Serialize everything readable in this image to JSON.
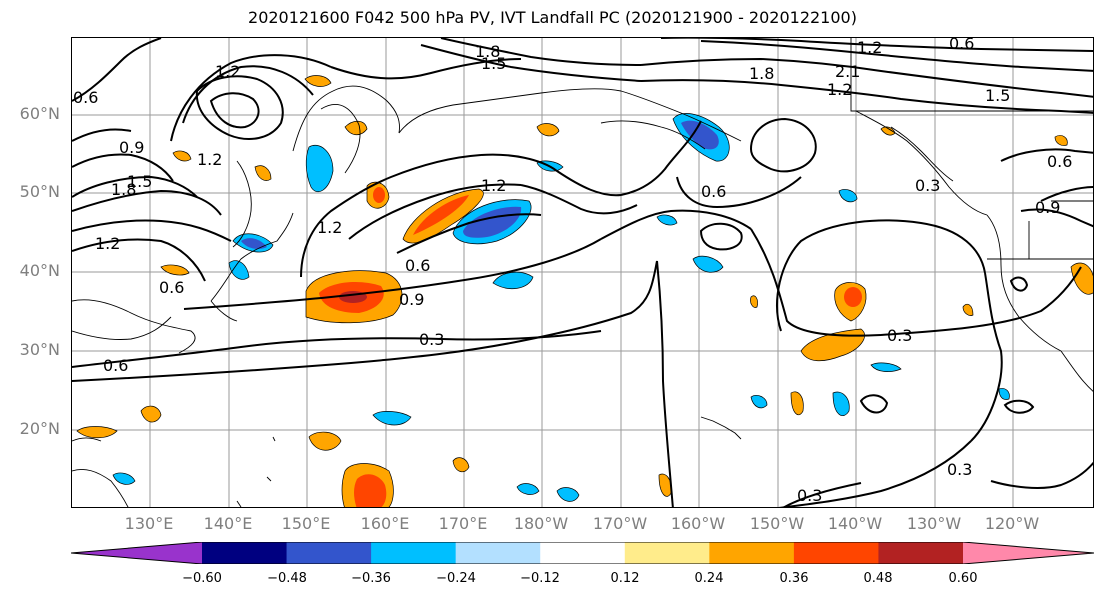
{
  "title": "2020121600 F042 500 hPa PV, IVT Landfall PC (2020121900 - 2020122100)",
  "lat_labels": [
    "60°N",
    "50°N",
    "40°N",
    "30°N",
    "20°N"
  ],
  "lon_labels": [
    "130°E",
    "140°E",
    "150°E",
    "160°E",
    "170°E",
    "180°W",
    "170°W",
    "160°W",
    "150°W",
    "140°W",
    "130°W",
    "120°W"
  ],
  "colorbar": {
    "tick_labels": [
      "−0.60",
      "−0.48",
      "−0.36",
      "−0.24",
      "−0.12",
      "0.12",
      "0.24",
      "0.36",
      "0.48",
      "0.60"
    ],
    "colors": [
      "#9933cc",
      "#000080",
      "#3355cc",
      "#00bfff",
      "#b3e0ff",
      "#ffffff",
      "#ffec8b",
      "#ffa500",
      "#ff4500",
      "#b22222",
      "#ff88aa"
    ]
  },
  "contour_labels": [
    "1.8",
    "1.5",
    "1.2",
    "0.9",
    "0.6",
    "0.3",
    "2.1"
  ],
  "contour_label_items": [
    {
      "text": "1.8"
    },
    {
      "text": "1.5"
    },
    {
      "text": "1.2"
    },
    {
      "text": "1.2"
    },
    {
      "text": "0.9"
    },
    {
      "text": "0.6"
    },
    {
      "text": "1.8"
    },
    {
      "text": "1.5"
    },
    {
      "text": "1.2"
    },
    {
      "text": "1.2"
    },
    {
      "text": "0.9"
    },
    {
      "text": "0.3"
    },
    {
      "text": "0.6"
    },
    {
      "text": "0.6"
    },
    {
      "text": "1.8"
    },
    {
      "text": "2.1"
    },
    {
      "text": "1.2"
    },
    {
      "text": "1.5"
    },
    {
      "text": "1.2"
    },
    {
      "text": "0.6"
    },
    {
      "text": "0.3"
    },
    {
      "text": "0.3"
    },
    {
      "text": "0.3"
    },
    {
      "text": "0.6"
    },
    {
      "text": "1.2"
    },
    {
      "text": "0.6"
    },
    {
      "text": "0.6"
    },
    {
      "text": "0.3"
    },
    {
      "text": "0.9"
    }
  ]
}
